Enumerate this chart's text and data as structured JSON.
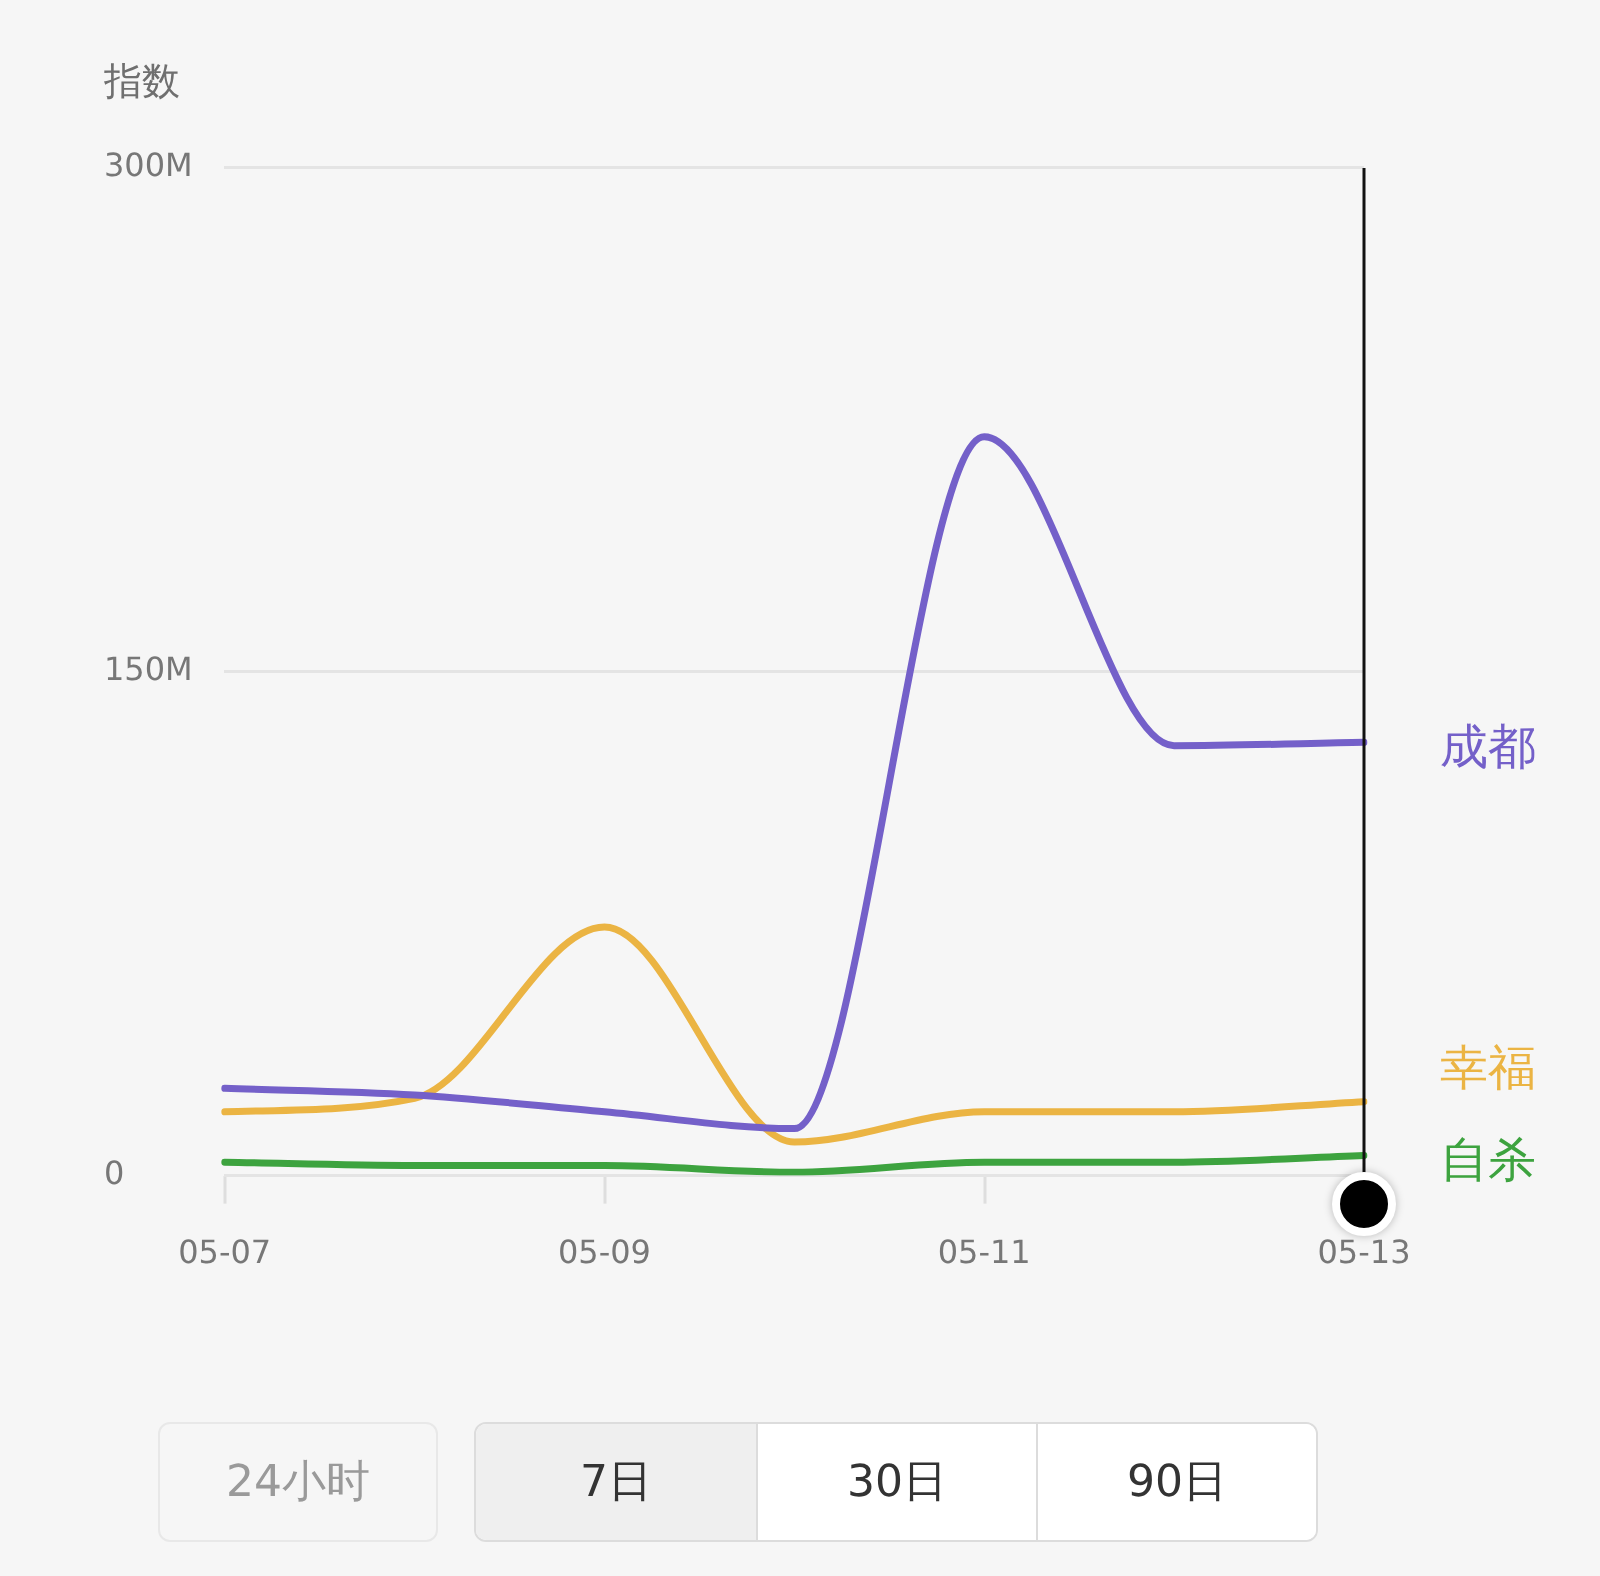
{
  "chart_data": {
    "type": "line",
    "ylabel": "指数",
    "categories": [
      "05-07",
      null,
      "05-09",
      null,
      "05-11",
      null,
      "05-13"
    ],
    "series": [
      {
        "name": "成都",
        "color": "#7460c9",
        "values": [
          26000000,
          24000000,
          19000000,
          14000000,
          220000000,
          128000000,
          129000000
        ]
      },
      {
        "name": "幸福",
        "color": "#ebb443",
        "values": [
          19000000,
          23000000,
          74000000,
          10000000,
          19000000,
          19000000,
          22000000
        ]
      },
      {
        "name": "自杀",
        "color": "#3da33f",
        "values": [
          4000000,
          3000000,
          3000000,
          1000000,
          4000000,
          4000000,
          6000000
        ]
      }
    ],
    "ylim": [
      0,
      300000000
    ],
    "yticks": [
      0,
      {
        "value": 150000000,
        "label": "150M"
      },
      {
        "value": 300000000,
        "label": "300M"
      }
    ],
    "grid": "y",
    "legend": false,
    "marker": "none",
    "line_style": "solid",
    "ref_lines": [
      {
        "axis": "x",
        "value": "05-13",
        "color": "#111111"
      }
    ],
    "annotations": [
      "24小时",
      "7日",
      "30日",
      "90日"
    ]
  }
}
